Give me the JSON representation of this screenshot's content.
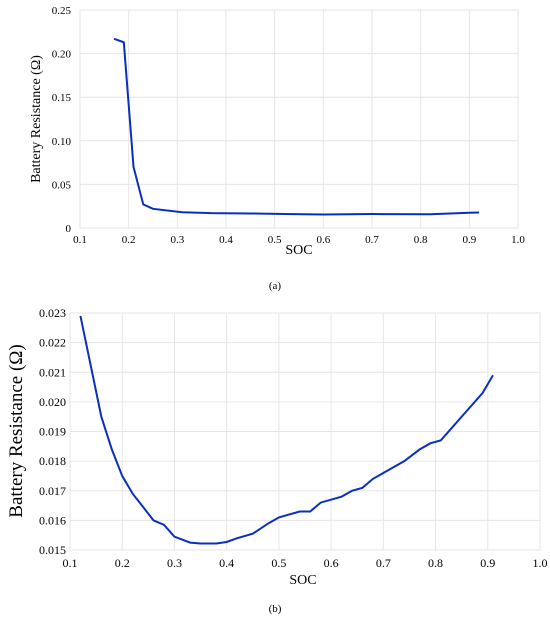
{
  "chart_data": [
    {
      "type": "line",
      "caption": "(a)",
      "xlabel": "SOC",
      "ylabel": "Battery Resistance (Ω)",
      "xlim": [
        0.1,
        1.0
      ],
      "ylim": [
        0,
        0.25
      ],
      "xticks": [
        "0.1",
        "0.2",
        "0.3",
        "0.4",
        "0.5",
        "0.6",
        "0.7",
        "0.8",
        "0.9",
        "1.0"
      ],
      "yticks": [
        "0",
        "0.05",
        "0.10",
        "0.15",
        "0.20",
        "0.25"
      ],
      "grid": true,
      "line_color": "#0a2fbf",
      "x": [
        0.17,
        0.19,
        0.21,
        0.23,
        0.25,
        0.31,
        0.37,
        0.45,
        0.52,
        0.6,
        0.7,
        0.82,
        0.9,
        0.92
      ],
      "y": [
        0.217,
        0.213,
        0.07,
        0.027,
        0.022,
        0.018,
        0.017,
        0.0167,
        0.016,
        0.0155,
        0.016,
        0.0158,
        0.0175,
        0.0178
      ]
    },
    {
      "type": "line",
      "caption": "(b)",
      "xlabel": "SOC",
      "ylabel": "Battery Resistance (Ω)",
      "xlim": [
        0.1,
        1.0
      ],
      "ylim": [
        0.015,
        0.023
      ],
      "xticks": [
        "0.1",
        "0.2",
        "0.3",
        "0.4",
        "0.5",
        "0.6",
        "0.7",
        "0.8",
        "0.9",
        "1.0"
      ],
      "yticks": [
        "0.015",
        "0.016",
        "0.017",
        "0.018",
        "0.019",
        "0.020",
        "0.021",
        "0.022",
        "0.023"
      ],
      "grid": true,
      "line_color": "#0a2fbf",
      "x": [
        0.12,
        0.14,
        0.16,
        0.18,
        0.2,
        0.22,
        0.24,
        0.26,
        0.28,
        0.3,
        0.33,
        0.35,
        0.38,
        0.4,
        0.42,
        0.45,
        0.48,
        0.5,
        0.52,
        0.54,
        0.56,
        0.58,
        0.62,
        0.64,
        0.66,
        0.68,
        0.71,
        0.74,
        0.77,
        0.79,
        0.81,
        0.83,
        0.86,
        0.89,
        0.91
      ],
      "y": [
        0.0229,
        0.0212,
        0.0195,
        0.0184,
        0.0175,
        0.0169,
        0.01645,
        0.016,
        0.01585,
        0.01545,
        0.01525,
        0.01522,
        0.01522,
        0.01527,
        0.0154,
        0.01555,
        0.0159,
        0.0161,
        0.0162,
        0.0163,
        0.0163,
        0.0166,
        0.0168,
        0.017,
        0.0171,
        0.0174,
        0.0177,
        0.018,
        0.0184,
        0.0186,
        0.0187,
        0.0191,
        0.0197,
        0.0203,
        0.0209
      ]
    }
  ]
}
